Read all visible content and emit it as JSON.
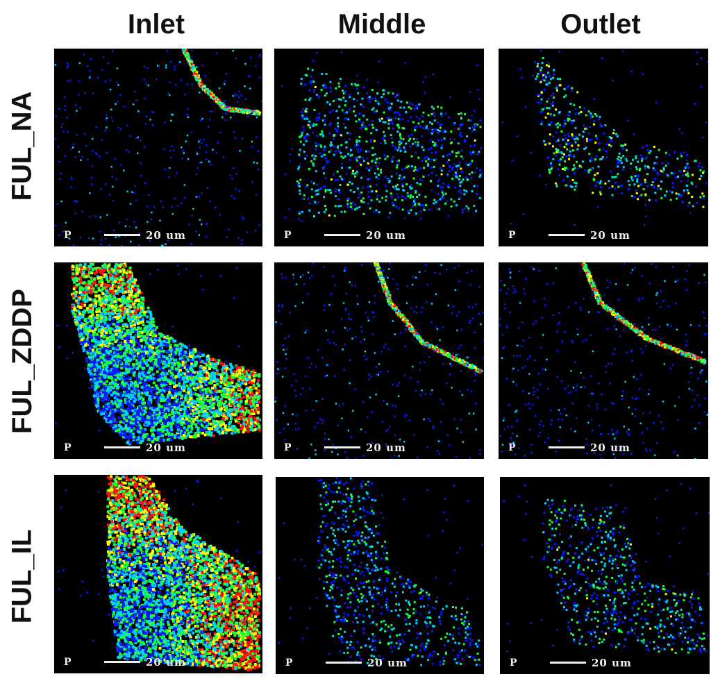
{
  "column_headers": [
    "Inlet",
    "Middle",
    "Outlet"
  ],
  "row_labels": [
    "FUL_NA",
    "FUL_ZDDP",
    "FUL_IL"
  ],
  "panel_label": "P",
  "scale_text": "20 um",
  "colors": {
    "background": "#000000",
    "low": "#0a1aff",
    "mid_low": "#00d0ff",
    "mid": "#20ff40",
    "mid_high": "#ffff00",
    "high": "#ff1010"
  },
  "panels": [
    {
      "row": "FUL_NA",
      "column": "Inlet",
      "pattern": "edge_line_sparse",
      "intensity": 0.15
    },
    {
      "row": "FUL_NA",
      "column": "Middle",
      "pattern": "scatter",
      "intensity": 0.45
    },
    {
      "row": "FUL_NA",
      "column": "Outlet",
      "pattern": "scatter_region",
      "intensity": 0.5
    },
    {
      "row": "FUL_ZDDP",
      "column": "Inlet",
      "pattern": "dense_filled",
      "intensity": 0.9
    },
    {
      "row": "FUL_ZDDP",
      "column": "Middle",
      "pattern": "edge_line_sparse",
      "intensity": 0.2
    },
    {
      "row": "FUL_ZDDP",
      "column": "Outlet",
      "pattern": "edge_line_sparse",
      "intensity": 0.25
    },
    {
      "row": "FUL_IL",
      "column": "Inlet",
      "pattern": "dense_filled",
      "intensity": 1.0
    },
    {
      "row": "FUL_IL",
      "column": "Middle",
      "pattern": "scatter_region",
      "intensity": 0.4
    },
    {
      "row": "FUL_IL",
      "column": "Outlet",
      "pattern": "scatter_region",
      "intensity": 0.45
    }
  ]
}
